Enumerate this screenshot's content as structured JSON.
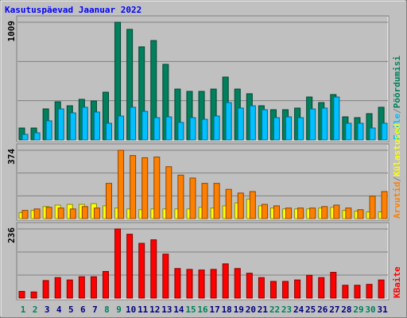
{
  "title": "Kasutuspäevad Jaanuar 2022",
  "label_separator": "/",
  "chart_data": [
    {
      "type": "bar",
      "ylim": [
        0,
        1009
      ],
      "yticks": [
        1009
      ],
      "series": [
        {
          "name": "Pöördumisi",
          "color": "#00805c",
          "values": [
            102,
            102,
            266,
            327,
            293,
            348,
            334,
            409,
            1009,
            948,
            798,
            852,
            648,
            436,
            416,
            416,
            436,
            539,
            436,
            396,
            293,
            259,
            259,
            273,
            368,
            320,
            389,
            198,
            191,
            225,
            280
          ]
        },
        {
          "name": "Faile",
          "color": "#00c0ff",
          "values": [
            48,
            61,
            164,
            266,
            232,
            280,
            239,
            143,
            205,
            280,
            245,
            191,
            198,
            150,
            191,
            177,
            205,
            320,
            273,
            293,
            259,
            191,
            198,
            191,
            266,
            273,
            368,
            143,
            143,
            102,
            143
          ]
        }
      ]
    },
    {
      "type": "bar",
      "ylim": [
        0,
        374
      ],
      "yticks": [
        374
      ],
      "series": [
        {
          "name": "Külastused",
          "color": "#ffff00",
          "values": [
            33,
            45,
            66,
            74,
            78,
            78,
            82,
            70,
            58,
            53,
            49,
            53,
            53,
            53,
            53,
            62,
            58,
            70,
            86,
            107,
            70,
            58,
            53,
            53,
            53,
            58,
            62,
            45,
            41,
            37,
            37
          ]
        },
        {
          "name": "Arvutid",
          "color": "#ff8000",
          "values": [
            45,
            53,
            62,
            58,
            53,
            66,
            58,
            193,
            374,
            345,
            333,
            337,
            284,
            238,
            222,
            193,
            193,
            160,
            140,
            148,
            78,
            70,
            58,
            58,
            58,
            66,
            74,
            58,
            49,
            123,
            148
          ]
        }
      ]
    },
    {
      "type": "bar",
      "ylim": [
        0,
        236
      ],
      "yticks": [
        236
      ],
      "categories": [
        "1",
        "2",
        "3",
        "4",
        "5",
        "6",
        "7",
        "8",
        "9",
        "10",
        "11",
        "12",
        "13",
        "14",
        "15",
        "16",
        "17",
        "18",
        "19",
        "20",
        "21",
        "22",
        "23",
        "24",
        "25",
        "26",
        "27",
        "28",
        "29",
        "30",
        "31"
      ],
      "category_colors": [
        "#00805c",
        "#00805c",
        "#000080",
        "#000080",
        "#000080",
        "#000080",
        "#000080",
        "#00805c",
        "#00805c",
        "#000080",
        "#000080",
        "#000080",
        "#000080",
        "#000080",
        "#00805c",
        "#00805c",
        "#000080",
        "#000080",
        "#000080",
        "#000080",
        "#000080",
        "#00805c",
        "#00805c",
        "#000080",
        "#000080",
        "#000080",
        "#000080",
        "#000080",
        "#00805c",
        "#00805c",
        "#000080"
      ],
      "series": [
        {
          "name": "KBaite",
          "color": "#ff0000",
          "values": [
            23,
            21,
            60,
            70,
            62,
            73,
            73,
            91,
            236,
            218,
            187,
            199,
            150,
            101,
            98,
            96,
            98,
            117,
            101,
            85,
            70,
            57,
            57,
            62,
            78,
            70,
            88,
            44,
            44,
            47,
            62
          ]
        }
      ]
    }
  ]
}
